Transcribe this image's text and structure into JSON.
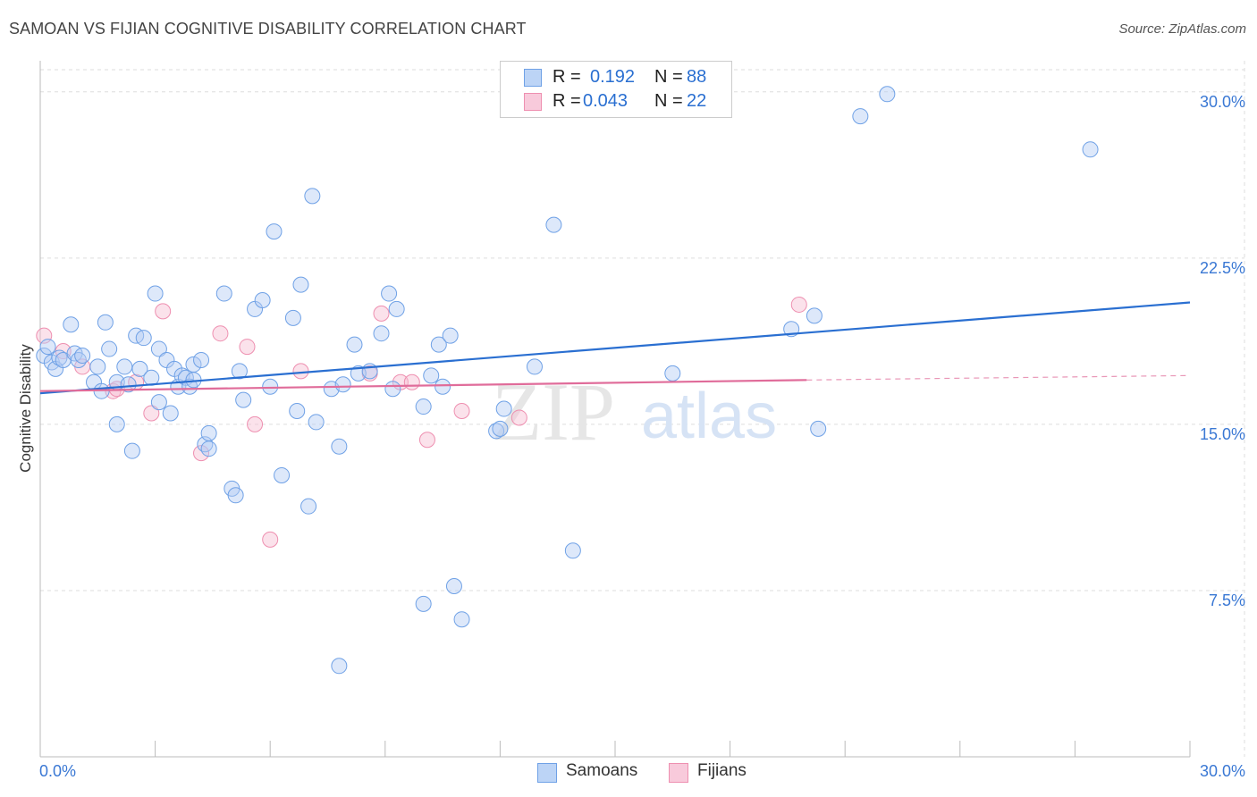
{
  "title": "SAMOAN VS FIJIAN COGNITIVE DISABILITY CORRELATION CHART",
  "source": "Source: ZipAtlas.com",
  "watermark": {
    "zip": "ZIP",
    "atlas": "atlas"
  },
  "legend": {
    "rows": [
      {
        "r_label": "R =",
        "r_value": "0.192",
        "n_label": "N =",
        "n_value": "88"
      },
      {
        "r_label": "R =",
        "r_value": "0.043",
        "n_label": "N =",
        "n_value": "22"
      }
    ]
  },
  "bottom_legend": {
    "samoans": "Samoans",
    "fijians": "Fijians"
  },
  "colors": {
    "samoans": "#6fa1e6",
    "fijians": "#ee8fb0",
    "samoans_line": "#2a6fd1",
    "fijians_line": "#e06c9a",
    "axis_text": "#3a78d4"
  },
  "chart_data": {
    "type": "scatter",
    "title": "SAMOAN VS FIJIAN COGNITIVE DISABILITY CORRELATION CHART",
    "xlabel": "",
    "ylabel": "Cognitive Disability",
    "xlim": [
      0,
      30
    ],
    "ylim": [
      0,
      31
    ],
    "x_tick_labels": [
      "0.0%",
      "30.0%"
    ],
    "y_ticks": [
      7.5,
      15.0,
      22.5,
      30.0
    ],
    "y_tick_labels": [
      "7.5%",
      "15.0%",
      "22.5%",
      "30.0%"
    ],
    "grid": true,
    "series": [
      {
        "name": "Samoans",
        "R": 0.192,
        "N": 88,
        "trend": {
          "x": [
            0,
            30
          ],
          "y": [
            16.4,
            20.5
          ]
        },
        "points": [
          [
            0.1,
            18.1
          ],
          [
            0.2,
            18.5
          ],
          [
            0.3,
            17.8
          ],
          [
            0.4,
            17.5
          ],
          [
            0.5,
            18.0
          ],
          [
            0.6,
            17.9
          ],
          [
            0.8,
            19.5
          ],
          [
            0.9,
            18.2
          ],
          [
            1.0,
            17.9
          ],
          [
            1.1,
            18.1
          ],
          [
            1.4,
            16.9
          ],
          [
            1.5,
            17.6
          ],
          [
            1.6,
            16.5
          ],
          [
            1.7,
            19.6
          ],
          [
            1.8,
            18.4
          ],
          [
            2.0,
            16.9
          ],
          [
            2.0,
            15.0
          ],
          [
            2.2,
            17.6
          ],
          [
            2.3,
            16.8
          ],
          [
            2.4,
            13.8
          ],
          [
            2.5,
            19.0
          ],
          [
            2.6,
            17.5
          ],
          [
            2.7,
            18.9
          ],
          [
            2.9,
            17.1
          ],
          [
            3.0,
            20.9
          ],
          [
            3.1,
            18.4
          ],
          [
            3.1,
            16.0
          ],
          [
            3.3,
            17.9
          ],
          [
            3.4,
            15.5
          ],
          [
            3.5,
            17.5
          ],
          [
            3.6,
            16.7
          ],
          [
            3.7,
            17.2
          ],
          [
            3.8,
            17.1
          ],
          [
            3.9,
            16.7
          ],
          [
            4.0,
            17.7
          ],
          [
            4.0,
            17.0
          ],
          [
            4.2,
            17.9
          ],
          [
            4.3,
            14.1
          ],
          [
            4.4,
            14.6
          ],
          [
            4.4,
            13.9
          ],
          [
            4.8,
            20.9
          ],
          [
            5.0,
            12.1
          ],
          [
            5.1,
            11.8
          ],
          [
            5.2,
            17.4
          ],
          [
            5.3,
            16.1
          ],
          [
            5.6,
            20.2
          ],
          [
            5.8,
            20.6
          ],
          [
            6.0,
            16.7
          ],
          [
            6.1,
            23.7
          ],
          [
            6.3,
            12.7
          ],
          [
            6.6,
            19.8
          ],
          [
            6.7,
            15.6
          ],
          [
            6.8,
            21.3
          ],
          [
            7.0,
            11.3
          ],
          [
            7.1,
            25.3
          ],
          [
            7.2,
            15.1
          ],
          [
            7.6,
            16.6
          ],
          [
            7.8,
            4.1
          ],
          [
            7.8,
            14.0
          ],
          [
            7.9,
            16.8
          ],
          [
            8.2,
            18.6
          ],
          [
            8.3,
            17.3
          ],
          [
            8.6,
            17.4
          ],
          [
            8.9,
            19.1
          ],
          [
            9.1,
            20.9
          ],
          [
            9.3,
            20.2
          ],
          [
            10.0,
            15.8
          ],
          [
            10.2,
            17.2
          ],
          [
            10.4,
            18.6
          ],
          [
            10.5,
            16.7
          ],
          [
            10.7,
            19.0
          ],
          [
            10.8,
            7.7
          ],
          [
            11.0,
            6.2
          ],
          [
            10.0,
            6.9
          ],
          [
            11.9,
            14.7
          ],
          [
            12.1,
            15.7
          ],
          [
            12.9,
            17.6
          ],
          [
            13.4,
            24.0
          ],
          [
            13.9,
            9.3
          ],
          [
            16.5,
            17.3
          ],
          [
            19.6,
            19.3
          ],
          [
            20.2,
            19.9
          ],
          [
            20.3,
            14.8
          ],
          [
            21.4,
            28.9
          ],
          [
            22.1,
            29.9
          ],
          [
            27.4,
            27.4
          ],
          [
            12.0,
            14.8
          ],
          [
            9.2,
            16.6
          ]
        ]
      },
      {
        "name": "Fijians",
        "R": 0.043,
        "N": 22,
        "trend": {
          "x": [
            0,
            20
          ],
          "y": [
            16.5,
            17.0
          ]
        },
        "trend_dashed_to": {
          "x": 30,
          "y": 17.2
        },
        "points": [
          [
            0.1,
            19.0
          ],
          [
            1.1,
            17.6
          ],
          [
            1.9,
            16.5
          ],
          [
            2.5,
            16.9
          ],
          [
            2.9,
            15.5
          ],
          [
            3.2,
            20.1
          ],
          [
            4.2,
            13.7
          ],
          [
            4.7,
            19.1
          ],
          [
            5.4,
            18.5
          ],
          [
            5.6,
            15.0
          ],
          [
            6.0,
            9.8
          ],
          [
            6.8,
            17.4
          ],
          [
            8.6,
            17.3
          ],
          [
            8.9,
            20.0
          ],
          [
            9.4,
            16.9
          ],
          [
            9.7,
            16.9
          ],
          [
            10.1,
            14.3
          ],
          [
            11.0,
            15.6
          ],
          [
            12.5,
            15.3
          ],
          [
            19.8,
            20.4
          ],
          [
            2.0,
            16.6
          ],
          [
            0.6,
            18.3
          ]
        ]
      }
    ]
  }
}
